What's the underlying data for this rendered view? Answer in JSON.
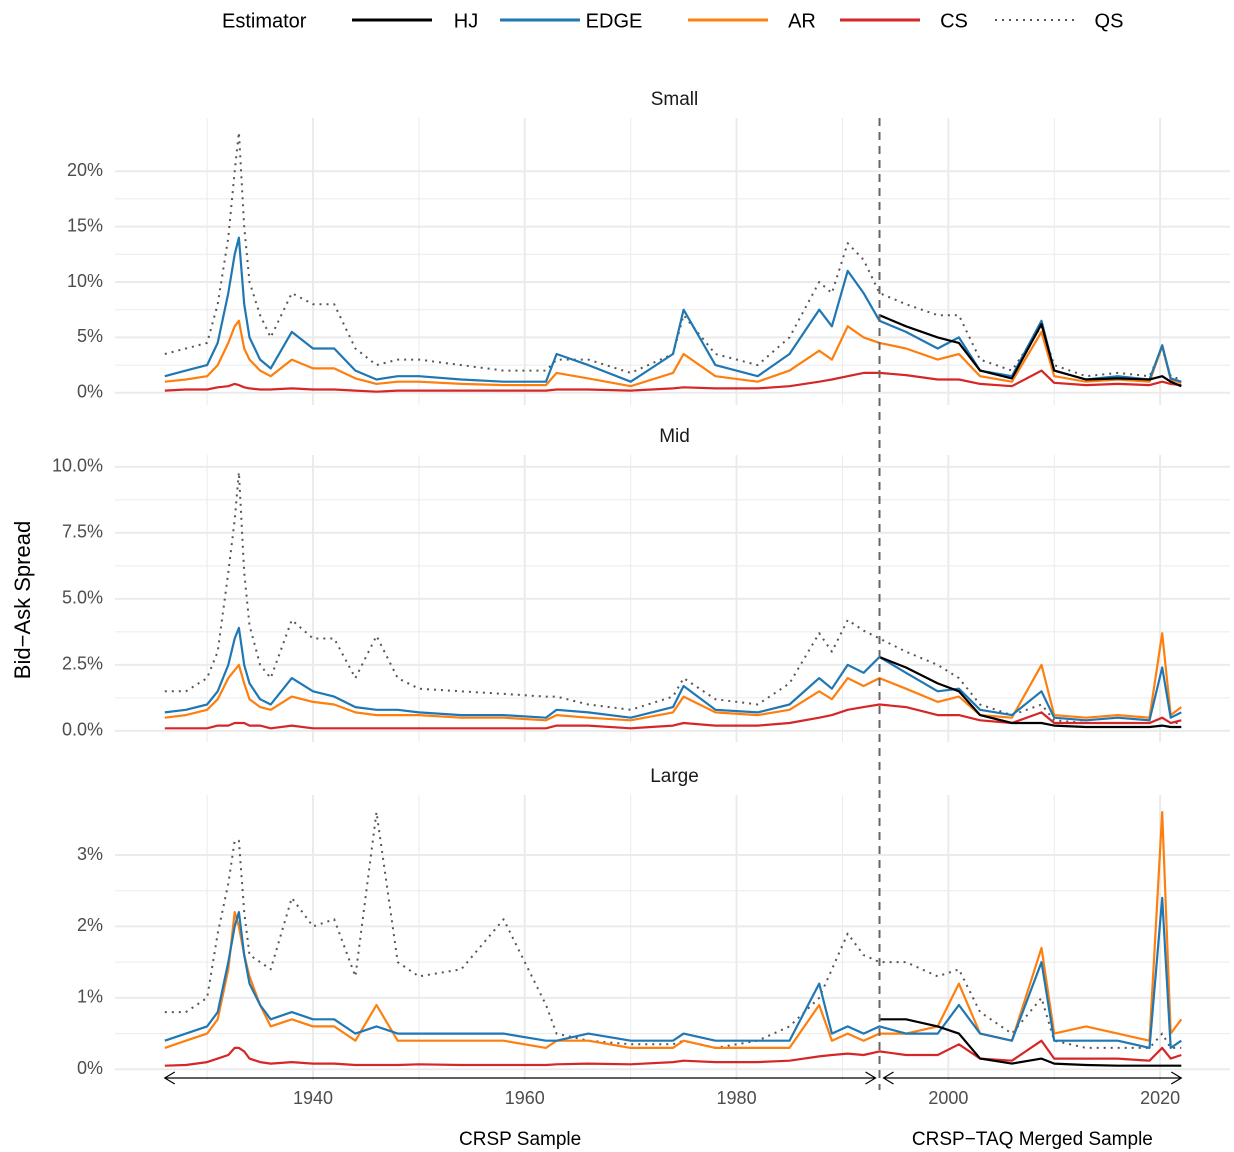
{
  "legend": {
    "title": "Estimator",
    "position": "top"
  },
  "ylabel": "Bid−Ask Spread",
  "annotations": [
    {
      "text": "CRSP Sample",
      "x": [
        1926,
        1993.5
      ]
    },
    {
      "text": "CRSP−TAQ Merged Sample",
      "x": [
        1993.5,
        2022
      ]
    }
  ],
  "chart_data": [
    {
      "type": "line",
      "title": "Small",
      "grid": true,
      "x": [
        1926,
        1928,
        1930,
        1931,
        1932,
        1932.6,
        1933,
        1933.5,
        1934,
        1935,
        1936,
        1938,
        1940,
        1942,
        1944,
        1946,
        1948,
        1950,
        1954,
        1958,
        1962,
        1963,
        1966,
        1970,
        1974,
        1975,
        1978,
        1982,
        1985,
        1987.8,
        1989,
        1990.5,
        1992,
        1993.5,
        1996,
        1999,
        2001,
        2003,
        2006,
        2008.8,
        2010,
        2013,
        2016,
        2019,
        2020.2,
        2021,
        2022
      ],
      "xlim": [
        1921.3,
        2026.6
      ],
      "xticks": [
        1940,
        1960,
        1980,
        2000,
        2020
      ],
      "ylim": [
        -1.1,
        24.8
      ],
      "yticks": [
        {
          "value": 0,
          "label": "0%"
        },
        {
          "value": 5,
          "label": "5%"
        },
        {
          "value": 10,
          "label": "10%"
        },
        {
          "value": 15,
          "label": "15%"
        },
        {
          "value": 20,
          "label": "20%"
        }
      ],
      "series": [
        {
          "name": "HJ",
          "color": "#000000",
          "linestyle": "solid",
          "values": [
            null,
            null,
            null,
            null,
            null,
            null,
            null,
            null,
            null,
            null,
            null,
            null,
            null,
            null,
            null,
            null,
            null,
            null,
            null,
            null,
            null,
            null,
            null,
            null,
            null,
            null,
            null,
            null,
            null,
            null,
            null,
            null,
            null,
            7,
            6,
            5,
            4.5,
            2,
            1.3,
            6.2,
            2,
            1.2,
            1.3,
            1.2,
            1.5,
            1.0,
            0.6
          ]
        },
        {
          "name": "EDGE",
          "color": "#1f77b4",
          "linestyle": "solid",
          "values": [
            1.5,
            2.0,
            2.5,
            4.5,
            9,
            12.5,
            14,
            8,
            5,
            3,
            2.2,
            5.5,
            4,
            4,
            2,
            1.2,
            1.5,
            1.5,
            1.2,
            1.0,
            1.0,
            3.5,
            2.5,
            1.0,
            3.5,
            7.5,
            2.5,
            1.5,
            3.5,
            7.5,
            6,
            11,
            9,
            6.5,
            5.5,
            4,
            5,
            2,
            1.5,
            6.5,
            2,
            1.2,
            1.5,
            1.2,
            4.3,
            1.3,
            1.0
          ]
        },
        {
          "name": "AR",
          "color": "#ff7f0e",
          "linestyle": "solid",
          "values": [
            1.0,
            1.2,
            1.5,
            2.5,
            4.5,
            6,
            6.5,
            4,
            3,
            2,
            1.5,
            3,
            2.2,
            2.2,
            1.3,
            0.8,
            1.0,
            1.0,
            0.8,
            0.7,
            0.7,
            1.8,
            1.3,
            0.6,
            1.8,
            3.5,
            1.5,
            1.0,
            2,
            3.8,
            3,
            6,
            5,
            4.5,
            4,
            3,
            3.5,
            1.5,
            1,
            5.5,
            1.5,
            1,
            1.2,
            1,
            4.2,
            1.2,
            0.9
          ]
        },
        {
          "name": "CS",
          "color": "#d62728",
          "linestyle": "solid",
          "values": [
            0.2,
            0.3,
            0.3,
            0.5,
            0.6,
            0.8,
            0.7,
            0.5,
            0.4,
            0.3,
            0.3,
            0.4,
            0.3,
            0.3,
            0.2,
            0.1,
            0.2,
            0.2,
            0.2,
            0.2,
            0.2,
            0.3,
            0.3,
            0.2,
            0.4,
            0.5,
            0.4,
            0.4,
            0.6,
            1.0,
            1.2,
            1.5,
            1.8,
            1.8,
            1.6,
            1.2,
            1.2,
            0.8,
            0.6,
            2,
            0.9,
            0.7,
            0.8,
            0.7,
            1.0,
            0.8,
            0.7
          ]
        },
        {
          "name": "QS",
          "color": "#555555",
          "linestyle": "dotted",
          "values": [
            3.5,
            4,
            4.5,
            8,
            14,
            20,
            23.5,
            15,
            10,
            7,
            5,
            9,
            8,
            8,
            4,
            2.5,
            3,
            3,
            2.5,
            2,
            2,
            3,
            3,
            1.8,
            3.5,
            7,
            3.5,
            2.5,
            5,
            10,
            9,
            13.5,
            12,
            9,
            8,
            7,
            7,
            3,
            2,
            6,
            2.5,
            1.5,
            1.8,
            1.5,
            4,
            1.5,
            1.2
          ]
        }
      ]
    },
    {
      "type": "line",
      "title": "Mid",
      "grid": true,
      "x": [
        1926,
        1928,
        1930,
        1931,
        1932,
        1932.6,
        1933,
        1933.5,
        1934,
        1935,
        1936,
        1938,
        1940,
        1942,
        1944,
        1946,
        1948,
        1950,
        1954,
        1958,
        1962,
        1963,
        1966,
        1970,
        1974,
        1975,
        1978,
        1982,
        1985,
        1987.8,
        1989,
        1990.5,
        1992,
        1993.5,
        1996,
        1999,
        2001,
        2003,
        2006,
        2008.8,
        2010,
        2013,
        2016,
        2019,
        2020.2,
        2021,
        2022
      ],
      "xlim": [
        1921.3,
        2026.6
      ],
      "xticks": [
        1940,
        1960,
        1980,
        2000,
        2020
      ],
      "ylim": [
        -0.42,
        10.45
      ],
      "yticks": [
        {
          "value": 0,
          "label": "0.0%"
        },
        {
          "value": 2.5,
          "label": "2.5%"
        },
        {
          "value": 5,
          "label": "5.0%"
        },
        {
          "value": 7.5,
          "label": "7.5%"
        },
        {
          "value": 10,
          "label": "10.0%"
        }
      ],
      "series": [
        {
          "name": "HJ",
          "color": "#000000",
          "linestyle": "solid",
          "values": [
            null,
            null,
            null,
            null,
            null,
            null,
            null,
            null,
            null,
            null,
            null,
            null,
            null,
            null,
            null,
            null,
            null,
            null,
            null,
            null,
            null,
            null,
            null,
            null,
            null,
            null,
            null,
            null,
            null,
            null,
            null,
            null,
            null,
            2.8,
            2.4,
            1.8,
            1.5,
            0.6,
            0.3,
            0.3,
            0.2,
            0.15,
            0.15,
            0.15,
            0.2,
            0.15,
            0.15
          ]
        },
        {
          "name": "EDGE",
          "color": "#1f77b4",
          "linestyle": "solid",
          "values": [
            0.7,
            0.8,
            1.0,
            1.5,
            2.5,
            3.5,
            3.9,
            2.5,
            1.8,
            1.2,
            1.0,
            2.0,
            1.5,
            1.3,
            0.9,
            0.8,
            0.8,
            0.7,
            0.6,
            0.6,
            0.5,
            0.8,
            0.7,
            0.5,
            0.9,
            1.7,
            0.8,
            0.7,
            1.0,
            2.0,
            1.6,
            2.5,
            2.2,
            2.8,
            2.2,
            1.5,
            1.6,
            0.8,
            0.6,
            1.5,
            0.5,
            0.4,
            0.5,
            0.4,
            2.4,
            0.5,
            0.7
          ]
        },
        {
          "name": "AR",
          "color": "#ff7f0e",
          "linestyle": "solid",
          "values": [
            0.5,
            0.6,
            0.8,
            1.2,
            2.0,
            2.3,
            2.5,
            1.8,
            1.2,
            0.9,
            0.8,
            1.3,
            1.1,
            1.0,
            0.7,
            0.6,
            0.6,
            0.6,
            0.5,
            0.5,
            0.4,
            0.6,
            0.5,
            0.4,
            0.7,
            1.3,
            0.7,
            0.6,
            0.8,
            1.5,
            1.2,
            2.0,
            1.7,
            2.0,
            1.6,
            1.1,
            1.3,
            0.6,
            0.5,
            2.5,
            0.6,
            0.5,
            0.6,
            0.5,
            3.7,
            0.6,
            0.9
          ]
        },
        {
          "name": "CS",
          "color": "#d62728",
          "linestyle": "solid",
          "values": [
            0.1,
            0.1,
            0.1,
            0.2,
            0.2,
            0.3,
            0.3,
            0.3,
            0.2,
            0.2,
            0.1,
            0.2,
            0.1,
            0.1,
            0.1,
            0.1,
            0.1,
            0.1,
            0.1,
            0.1,
            0.1,
            0.2,
            0.2,
            0.1,
            0.2,
            0.3,
            0.2,
            0.2,
            0.3,
            0.5,
            0.6,
            0.8,
            0.9,
            1.0,
            0.9,
            0.6,
            0.6,
            0.4,
            0.3,
            0.7,
            0.3,
            0.3,
            0.3,
            0.3,
            0.5,
            0.3,
            0.4
          ]
        },
        {
          "name": "QS",
          "color": "#555555",
          "linestyle": "dotted",
          "values": [
            1.5,
            1.5,
            2,
            3,
            6,
            8,
            9.8,
            6,
            4,
            2.5,
            2,
            4.2,
            3.5,
            3.5,
            2,
            3.6,
            2,
            1.6,
            1.5,
            1.4,
            1.3,
            1.3,
            1.0,
            0.8,
            1.3,
            2,
            1.2,
            1.0,
            1.8,
            3.7,
            3.0,
            4.2,
            3.8,
            3.5,
            3.0,
            2.5,
            2.0,
            1.0,
            0.6,
            1.0,
            0.4,
            0.3,
            0.3,
            0.3,
            0.5,
            0.3,
            0.3
          ]
        }
      ]
    },
    {
      "type": "line",
      "title": "Large",
      "grid": true,
      "x": [
        1926,
        1928,
        1930,
        1931,
        1932,
        1932.6,
        1933,
        1933.5,
        1934,
        1935,
        1936,
        1938,
        1940,
        1942,
        1944,
        1946,
        1948,
        1950,
        1954,
        1958,
        1962,
        1963,
        1966,
        1970,
        1974,
        1975,
        1978,
        1982,
        1985,
        1987.8,
        1989,
        1990.5,
        1992,
        1993.5,
        1996,
        1999,
        2001,
        2003,
        2006,
        2008.8,
        2010,
        2013,
        2016,
        2019,
        2020.2,
        2021,
        2022
      ],
      "xlim": [
        1921.3,
        2026.6
      ],
      "xticks": [
        1940,
        1960,
        1980,
        2000,
        2020
      ],
      "ylim": [
        -0.15,
        3.84
      ],
      "yticks": [
        {
          "value": 0,
          "label": "0%"
        },
        {
          "value": 1,
          "label": "1%"
        },
        {
          "value": 2,
          "label": "2%"
        },
        {
          "value": 3,
          "label": "3%"
        }
      ],
      "series": [
        {
          "name": "HJ",
          "color": "#000000",
          "linestyle": "solid",
          "values": [
            null,
            null,
            null,
            null,
            null,
            null,
            null,
            null,
            null,
            null,
            null,
            null,
            null,
            null,
            null,
            null,
            null,
            null,
            null,
            null,
            null,
            null,
            null,
            null,
            null,
            null,
            null,
            null,
            null,
            null,
            null,
            null,
            null,
            0.7,
            0.7,
            0.6,
            0.5,
            0.15,
            0.08,
            0.15,
            0.08,
            0.06,
            0.05,
            0.05,
            0.05,
            0.05,
            0.05
          ]
        },
        {
          "name": "EDGE",
          "color": "#1f77b4",
          "linestyle": "solid",
          "values": [
            0.4,
            0.5,
            0.6,
            0.8,
            1.5,
            2.0,
            2.2,
            1.6,
            1.2,
            0.9,
            0.7,
            0.8,
            0.7,
            0.7,
            0.5,
            0.6,
            0.5,
            0.5,
            0.5,
            0.5,
            0.4,
            0.4,
            0.5,
            0.4,
            0.4,
            0.5,
            0.4,
            0.4,
            0.4,
            1.2,
            0.5,
            0.6,
            0.5,
            0.6,
            0.5,
            0.5,
            0.9,
            0.5,
            0.4,
            1.5,
            0.4,
            0.4,
            0.4,
            0.3,
            2.4,
            0.3,
            0.4
          ]
        },
        {
          "name": "AR",
          "color": "#ff7f0e",
          "linestyle": "solid",
          "values": [
            0.3,
            0.4,
            0.5,
            0.7,
            1.4,
            2.2,
            2.0,
            1.6,
            1.3,
            0.9,
            0.6,
            0.7,
            0.6,
            0.6,
            0.4,
            0.9,
            0.4,
            0.4,
            0.4,
            0.4,
            0.3,
            0.4,
            0.4,
            0.3,
            0.3,
            0.4,
            0.3,
            0.3,
            0.3,
            0.9,
            0.4,
            0.5,
            0.4,
            0.5,
            0.5,
            0.6,
            1.2,
            0.5,
            0.4,
            1.7,
            0.5,
            0.6,
            0.5,
            0.4,
            3.6,
            0.5,
            0.7
          ]
        },
        {
          "name": "CS",
          "color": "#d62728",
          "linestyle": "solid",
          "values": [
            0.05,
            0.06,
            0.1,
            0.15,
            0.2,
            0.3,
            0.3,
            0.25,
            0.15,
            0.1,
            0.08,
            0.1,
            0.08,
            0.08,
            0.06,
            0.06,
            0.06,
            0.07,
            0.06,
            0.06,
            0.06,
            0.07,
            0.08,
            0.07,
            0.1,
            0.12,
            0.1,
            0.1,
            0.12,
            0.18,
            0.2,
            0.22,
            0.2,
            0.25,
            0.2,
            0.2,
            0.35,
            0.15,
            0.12,
            0.4,
            0.15,
            0.15,
            0.15,
            0.12,
            0.3,
            0.15,
            0.2
          ]
        },
        {
          "name": "QS",
          "color": "#555555",
          "linestyle": "dotted",
          "values": [
            0.8,
            0.8,
            1.0,
            1.9,
            2.6,
            3.2,
            3.2,
            2.2,
            1.6,
            1.5,
            1.4,
            2.4,
            2.0,
            2.1,
            1.3,
            3.6,
            1.5,
            1.3,
            1.4,
            2.1,
            0.9,
            0.5,
            0.4,
            0.35,
            0.35,
            0.4,
            0.3,
            0.4,
            0.6,
            1.0,
            1.4,
            1.9,
            1.6,
            1.5,
            1.5,
            1.3,
            1.4,
            0.8,
            0.5,
            1.0,
            0.4,
            0.3,
            0.3,
            0.3,
            0.5,
            0.3,
            0.3
          ]
        }
      ]
    }
  ]
}
